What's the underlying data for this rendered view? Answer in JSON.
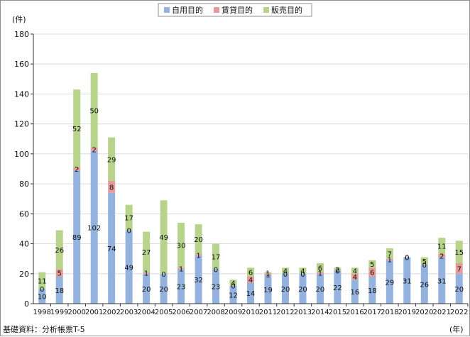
{
  "chart_data": {
    "type": "bar",
    "stacked": true,
    "y_unit": "(件)",
    "x_unit": "(年)",
    "source_note": "基礎資料：分析帳票T-5",
    "ylim": [
      0,
      180
    ],
    "yticks": [
      0,
      20,
      40,
      60,
      80,
      100,
      120,
      140,
      160,
      180
    ],
    "grid": true,
    "legend_position": "top-center",
    "categories": [
      "1998",
      "1999",
      "2000",
      "2001",
      "2002",
      "2003",
      "2004",
      "2005",
      "2006",
      "2007",
      "2008",
      "2009",
      "2010",
      "2011",
      "2012",
      "2013",
      "2014",
      "2015",
      "2016",
      "2017",
      "2018",
      "2019",
      "2020",
      "2021",
      "2022"
    ],
    "series": [
      {
        "name": "自用目的",
        "color": "#94b2de",
        "values": [
          10,
          18,
          89,
          102,
          74,
          49,
          20,
          20,
          23,
          32,
          23,
          12,
          14,
          19,
          20,
          20,
          20,
          22,
          16,
          18,
          29,
          31,
          26,
          31,
          20
        ]
      },
      {
        "name": "賃貸目的",
        "color": "#e89a9a",
        "values": [
          0,
          5,
          2,
          2,
          8,
          0,
          1,
          0,
          1,
          1,
          0,
          0,
          4,
          1,
          0,
          0,
          1,
          0,
          4,
          6,
          1,
          0,
          0,
          2,
          7
        ]
      },
      {
        "name": "販売目的",
        "color": "#b8d48c",
        "values": [
          11,
          26,
          52,
          50,
          29,
          17,
          27,
          49,
          30,
          20,
          17,
          4,
          6,
          1,
          4,
          4,
          6,
          2,
          4,
          5,
          7,
          0,
          5,
          11,
          15
        ]
      }
    ]
  }
}
